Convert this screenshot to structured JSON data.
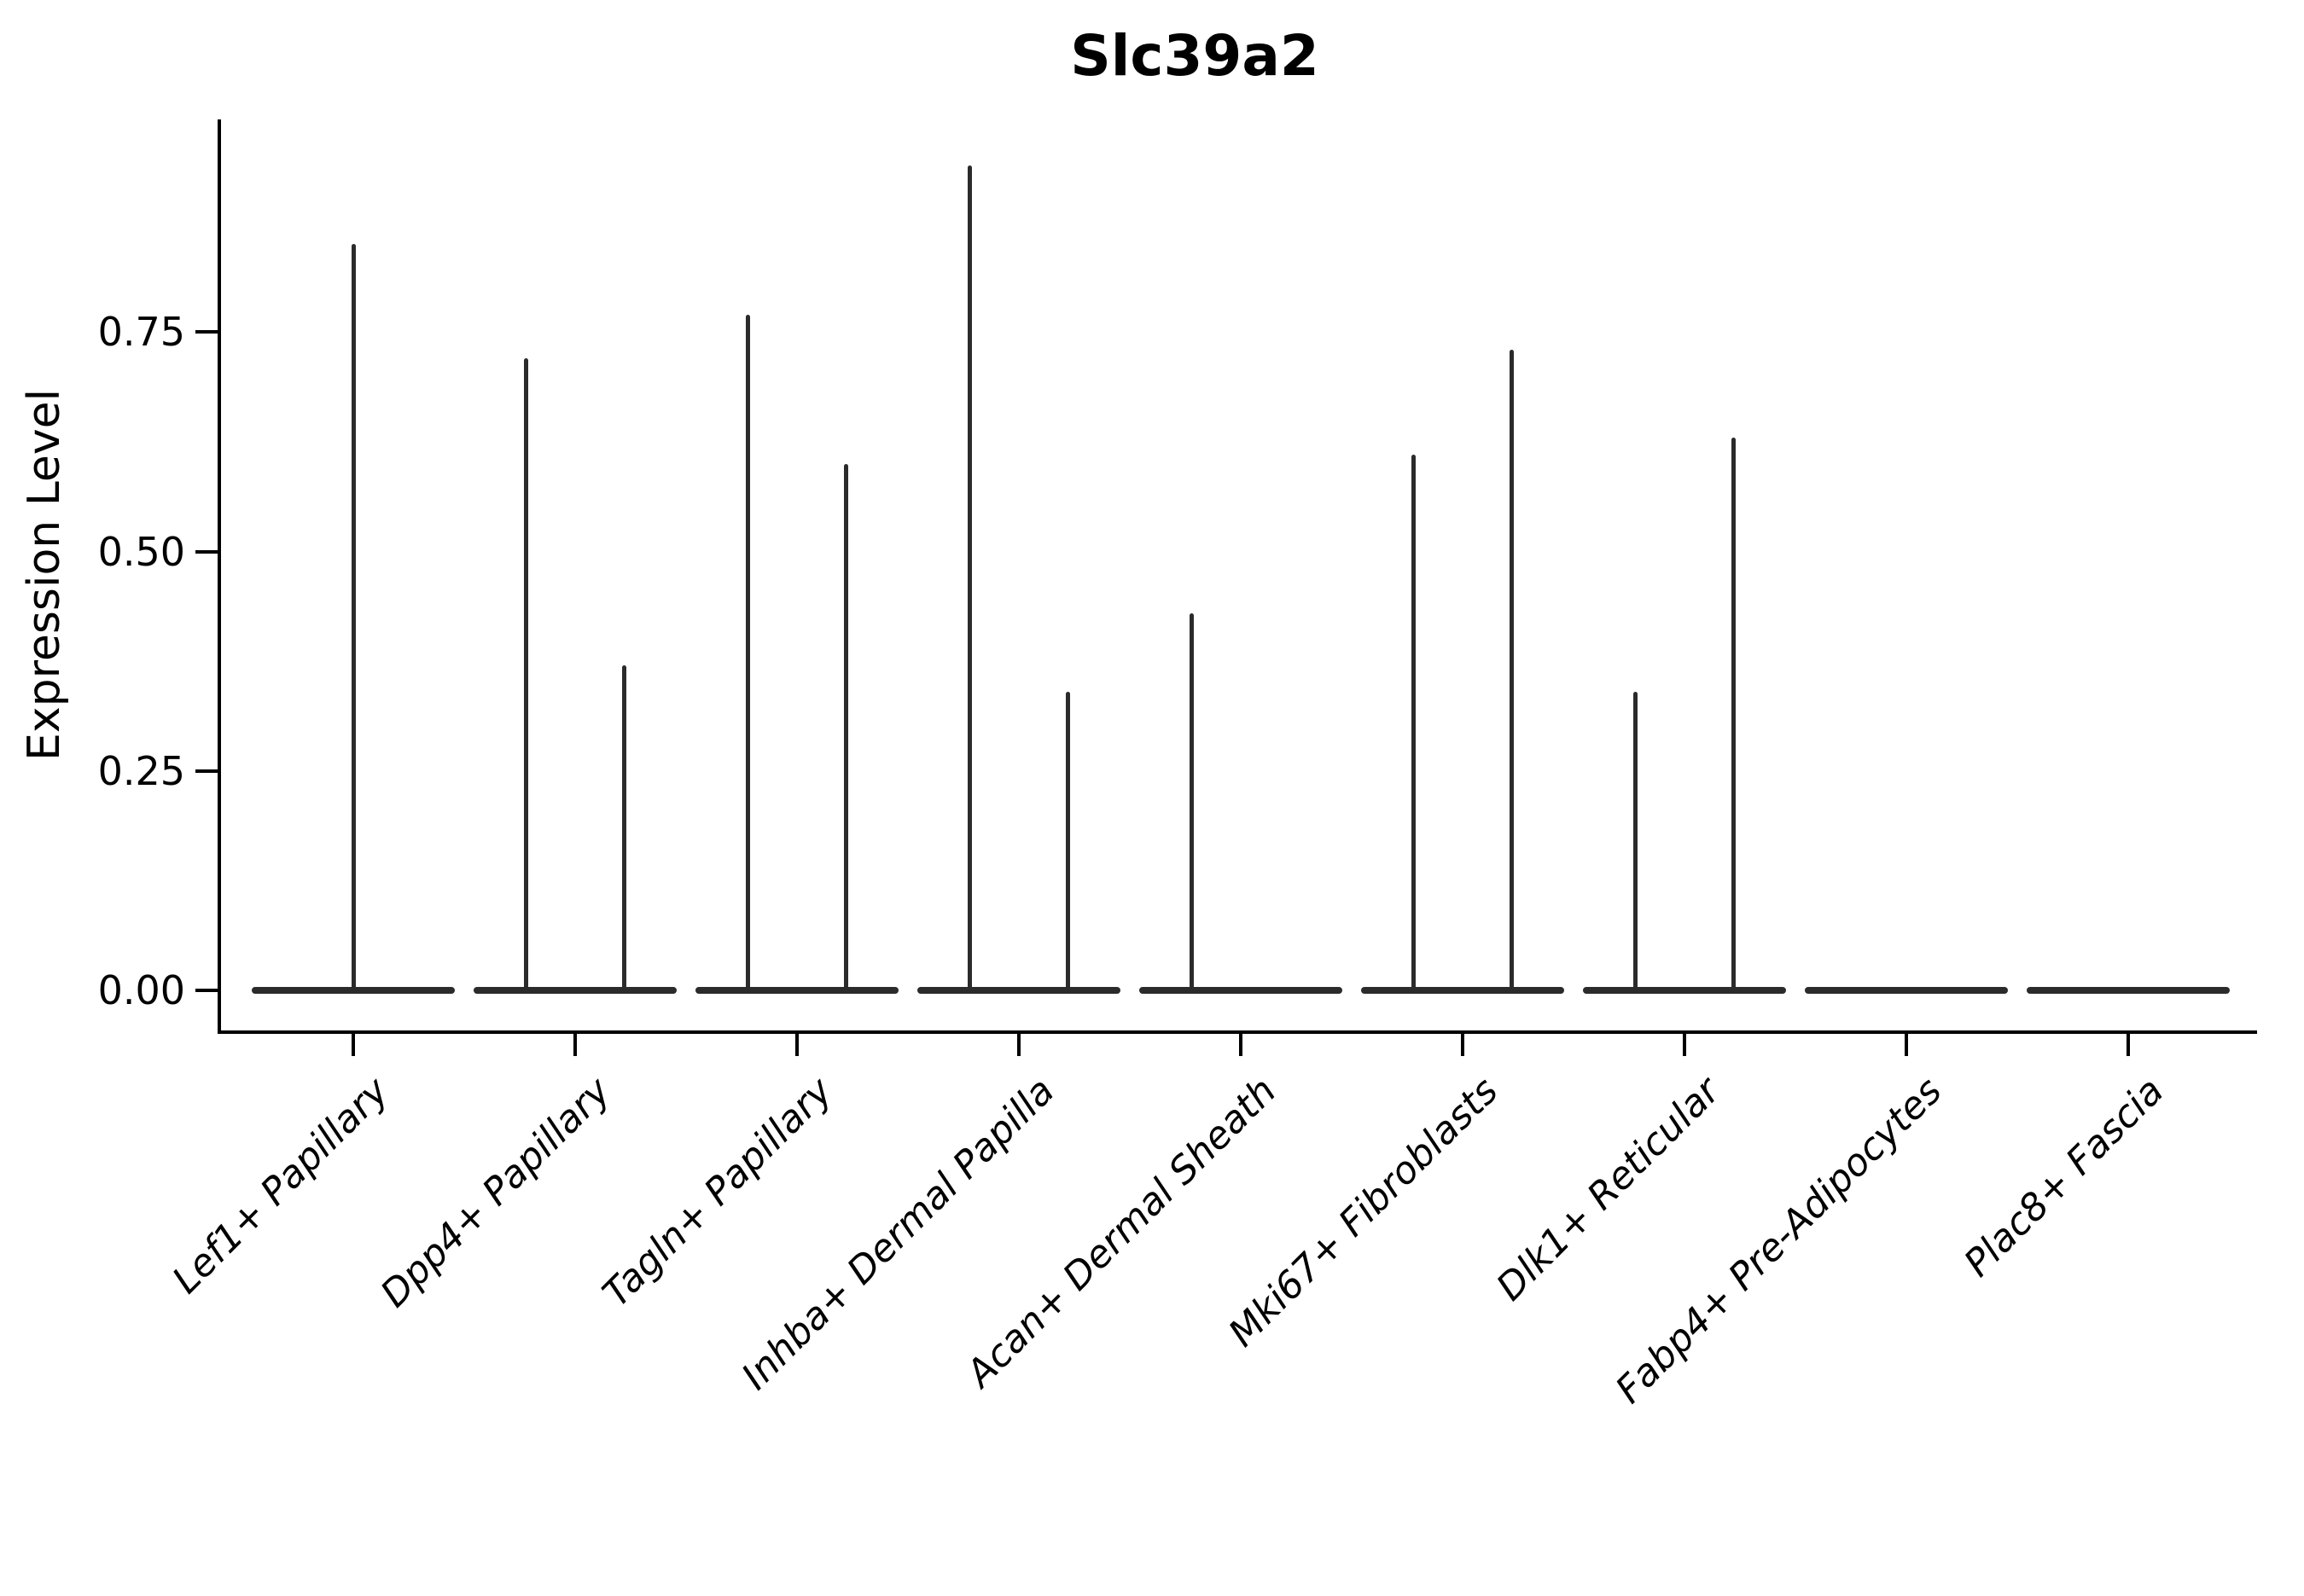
{
  "figure": {
    "background": "#ffffff"
  },
  "chart_data": {
    "type": "violin",
    "title": "Slc39a2",
    "ylabel": "Expression Level",
    "xlabel": "",
    "yticks": [
      0.0,
      0.25,
      0.5,
      0.75
    ],
    "ylim": [
      0.0,
      0.99
    ],
    "grid": false,
    "legend": "none",
    "x_tick_rotation_degrees": 45,
    "colors": {
      "violin": "#2b2b2b",
      "axis": "#000000",
      "text": "#000000",
      "background": "#ffffff"
    },
    "categories": [
      "Lef1+ Papillary",
      "Dpp4+ Papillary",
      "Tagln+ Papillary",
      "Inhba+ Dermal Papilla",
      "Acan+ Dermal Sheath",
      "Mki67+ Fibroblasts",
      "Dlk1+ Reticular",
      "Fabp4+ Pre-Adipocytes",
      "Plac8+ Fascia"
    ],
    "violins": [
      {
        "category": "Lef1+ Papillary",
        "baseline_value": 0.0,
        "spikes": [
          {
            "offset": 0.0,
            "value": 0.85
          }
        ]
      },
      {
        "category": "Dpp4+ Papillary",
        "baseline_value": 0.0,
        "spikes": [
          {
            "offset": -0.22,
            "value": 0.72
          },
          {
            "offset": 0.22,
            "value": 0.37
          }
        ]
      },
      {
        "category": "Tagln+ Papillary",
        "baseline_value": 0.0,
        "spikes": [
          {
            "offset": -0.22,
            "value": 0.77
          },
          {
            "offset": 0.22,
            "value": 0.6
          }
        ]
      },
      {
        "category": "Inhba+ Dermal Papilla",
        "baseline_value": 0.0,
        "spikes": [
          {
            "offset": -0.22,
            "value": 0.94
          },
          {
            "offset": 0.22,
            "value": 0.34
          }
        ]
      },
      {
        "category": "Acan+ Dermal Sheath",
        "baseline_value": 0.0,
        "spikes": [
          {
            "offset": -0.22,
            "value": 0.43
          }
        ]
      },
      {
        "category": "Mki67+ Fibroblasts",
        "baseline_value": 0.0,
        "spikes": [
          {
            "offset": -0.22,
            "value": 0.61
          },
          {
            "offset": 0.22,
            "value": 0.73
          }
        ]
      },
      {
        "category": "Dlk1+ Reticular",
        "baseline_value": 0.0,
        "spikes": [
          {
            "offset": -0.22,
            "value": 0.34
          },
          {
            "offset": 0.22,
            "value": 0.63
          }
        ]
      },
      {
        "category": "Fabp4+ Pre-Adipocytes",
        "baseline_value": 0.0,
        "spikes": []
      },
      {
        "category": "Plac8+ Fascia",
        "baseline_value": 0.0,
        "spikes": []
      }
    ]
  }
}
